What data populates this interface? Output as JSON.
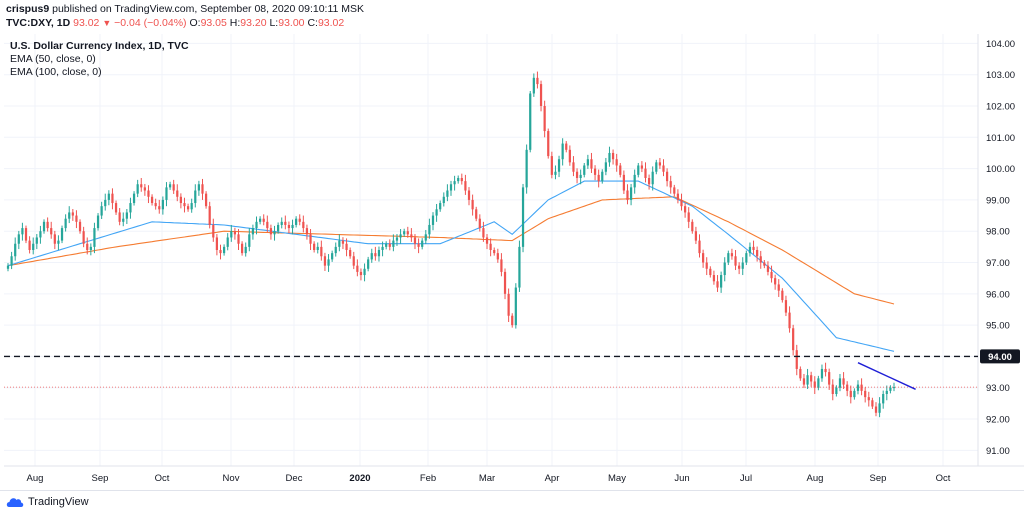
{
  "header": {
    "author": "crispus9",
    "published_text": "published on TradingView.com, September 08, 2020 09:10:11 MSK",
    "symbol": "TVC:DXY, 1D",
    "last": "93.02",
    "arrow": "▼",
    "change": "−0.04 (−0.04%)",
    "o_label": "O:",
    "o_value": "93.05",
    "h_label": "H:",
    "h_value": "93.20",
    "l_label": "L:",
    "l_value": "93.00",
    "c_label": "C:",
    "c_value": "93.02"
  },
  "legend": {
    "title": "U.S. Dollar Currency Index, 1D, TVC",
    "ema50": "EMA (50, close, 0)",
    "ema100": "EMA (100, close, 0)"
  },
  "footer": {
    "brand": "TradingView"
  },
  "colors": {
    "up": "#26a69a",
    "down": "#ef5350",
    "ema50": "#42a5f5",
    "ema100": "#f57c32",
    "trendline": "#1f1fd6",
    "grid": "#f0f3fa",
    "axis_border": "#e0e3eb",
    "label_bg": "#131722",
    "label_text": "#ffffff"
  },
  "chart_data": {
    "type": "candlestick",
    "title": "U.S. Dollar Currency Index, 1D, TVC",
    "x_tick_labels": [
      "Aug",
      "Sep",
      "Oct",
      "Nov",
      "Dec",
      "2020",
      "Feb",
      "Mar",
      "Apr",
      "May",
      "Jun",
      "Jul",
      "Aug",
      "Sep",
      "Oct"
    ],
    "y_tick_labels": [
      "104.00",
      "103.00",
      "102.00",
      "101.00",
      "100.00",
      "99.00",
      "98.00",
      "97.00",
      "96.00",
      "95.00",
      "94.00",
      "93.00",
      "92.00",
      "91.00"
    ],
    "ylim": [
      90.5,
      104.3
    ],
    "closes": [
      96.9,
      97.2,
      97.6,
      97.9,
      98.1,
      97.7,
      97.4,
      97.6,
      97.8,
      98.0,
      98.3,
      98.1,
      97.9,
      97.6,
      97.7,
      98.1,
      98.4,
      98.6,
      98.5,
      98.3,
      98.0,
      97.6,
      97.4,
      97.5,
      98.1,
      98.5,
      98.8,
      99.0,
      99.2,
      98.9,
      98.6,
      98.3,
      98.4,
      98.6,
      98.9,
      99.2,
      99.5,
      99.4,
      99.3,
      99.1,
      98.9,
      98.8,
      98.7,
      99.0,
      99.4,
      99.5,
      99.3,
      99.1,
      98.9,
      98.8,
      98.7,
      98.9,
      99.3,
      99.5,
      99.2,
      98.8,
      98.2,
      97.8,
      97.4,
      97.3,
      97.5,
      97.8,
      98.0,
      97.9,
      97.6,
      97.3,
      97.5,
      97.9,
      98.1,
      98.3,
      98.4,
      98.3,
      98.1,
      97.9,
      98.0,
      98.2,
      98.3,
      98.2,
      98.1,
      98.2,
      98.4,
      98.3,
      98.1,
      97.9,
      97.6,
      97.4,
      97.5,
      97.2,
      96.9,
      97.1,
      97.3,
      97.5,
      97.7,
      97.6,
      97.4,
      97.2,
      96.9,
      96.7,
      96.6,
      96.8,
      97.1,
      97.3,
      97.2,
      97.4,
      97.5,
      97.6,
      97.5,
      97.7,
      97.8,
      97.9,
      98.0,
      97.9,
      97.8,
      97.6,
      97.5,
      97.7,
      97.9,
      98.2,
      98.5,
      98.7,
      98.9,
      99.1,
      99.3,
      99.5,
      99.6,
      99.7,
      99.6,
      99.3,
      99.0,
      98.7,
      98.4,
      98.1,
      97.8,
      97.6,
      97.4,
      97.3,
      97.1,
      96.7,
      96.0,
      95.3,
      95.0,
      96.2,
      97.5,
      99.4,
      100.6,
      102.4,
      102.9,
      102.7,
      102.0,
      101.2,
      100.4,
      99.8,
      99.9,
      100.3,
      100.8,
      100.6,
      100.2,
      99.9,
      99.7,
      99.8,
      100.1,
      100.3,
      100.0,
      99.8,
      99.6,
      99.9,
      100.2,
      100.5,
      100.3,
      100.1,
      99.8,
      99.3,
      99.0,
      99.4,
      99.8,
      100.1,
      100.0,
      99.7,
      99.5,
      99.9,
      100.2,
      100.1,
      99.9,
      99.6,
      99.4,
      99.2,
      99.0,
      98.8,
      98.6,
      98.3,
      98.0,
      97.7,
      97.3,
      97.0,
      96.8,
      96.6,
      96.4,
      96.2,
      96.6,
      97.0,
      97.3,
      97.2,
      96.9,
      96.8,
      97.0,
      97.3,
      97.5,
      97.4,
      97.2,
      97.0,
      96.9,
      96.7,
      96.5,
      96.3,
      96.1,
      95.8,
      95.4,
      94.9,
      94.2,
      93.6,
      93.3,
      93.1,
      93.4,
      93.2,
      93.0,
      93.3,
      93.6,
      93.5,
      93.1,
      92.8,
      93.0,
      93.3,
      93.1,
      92.9,
      92.7,
      92.9,
      93.1,
      92.9,
      92.7,
      92.6,
      92.4,
      92.2,
      92.5,
      92.8,
      92.9,
      93.0,
      93.02
    ],
    "ema50_anchors": [
      [
        0,
        96.9
      ],
      [
        20,
        97.6
      ],
      [
        40,
        98.3
      ],
      [
        60,
        98.2
      ],
      [
        80,
        97.9
      ],
      [
        100,
        97.6
      ],
      [
        120,
        97.6
      ],
      [
        135,
        98.3
      ],
      [
        140,
        97.9
      ],
      [
        150,
        99.0
      ],
      [
        160,
        99.6
      ],
      [
        175,
        99.6
      ],
      [
        190,
        98.8
      ],
      [
        200,
        97.9
      ],
      [
        215,
        96.5
      ],
      [
        230,
        94.6
      ],
      [
        252,
        94.0
      ]
    ],
    "ema100_anchors": [
      [
        0,
        96.9
      ],
      [
        30,
        97.5
      ],
      [
        60,
        98.0
      ],
      [
        90,
        97.9
      ],
      [
        120,
        97.8
      ],
      [
        140,
        97.7
      ],
      [
        150,
        98.4
      ],
      [
        165,
        99.0
      ],
      [
        185,
        99.1
      ],
      [
        200,
        98.3
      ],
      [
        215,
        97.4
      ],
      [
        235,
        96.0
      ],
      [
        252,
        95.5
      ]
    ],
    "trendline": [
      [
        236,
        93.8
      ],
      [
        252,
        92.95
      ]
    ],
    "hline": {
      "value": 94.0,
      "label": "94.00",
      "style": "dashed"
    },
    "last_price": {
      "value": 93.02,
      "style": "dotted"
    }
  }
}
